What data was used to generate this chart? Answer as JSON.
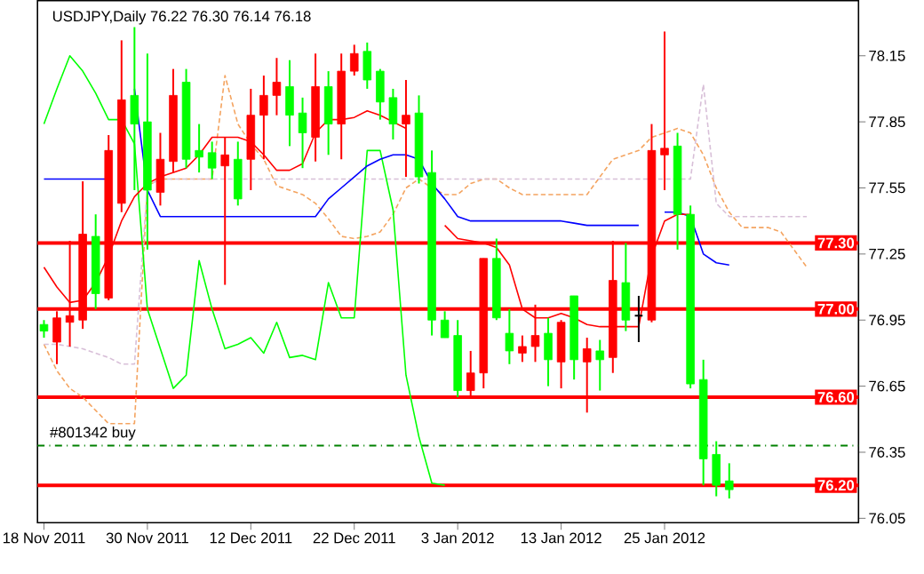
{
  "chart_data": {
    "type": "candlestick",
    "title": "USDJPY,Daily  76.22 76.30 76.14 76.18",
    "categories": [
      "18 Nov 2011",
      null,
      null,
      null,
      null,
      null,
      null,
      null,
      "30 Nov 2011",
      null,
      null,
      null,
      null,
      null,
      null,
      null,
      "12 Dec 2011",
      null,
      null,
      null,
      null,
      null,
      null,
      null,
      "22 Dec 2011",
      null,
      null,
      null,
      null,
      null,
      null,
      null,
      "3 Jan 2012",
      null,
      null,
      null,
      null,
      null,
      null,
      null,
      "13 Jan 2012",
      null,
      null,
      null,
      null,
      null,
      null,
      null,
      "25 Jan 2012",
      null,
      null,
      null,
      null,
      null,
      null,
      null,
      null,
      null,
      null,
      null
    ],
    "ohlc": [
      [
        76.93,
        76.95,
        76.87,
        76.9
      ],
      [
        76.85,
        76.99,
        76.75,
        76.96
      ],
      [
        76.94,
        77.31,
        76.83,
        76.97
      ],
      [
        76.95,
        77.58,
        76.91,
        77.34
      ],
      [
        77.33,
        77.43,
        77.0,
        77.07
      ],
      [
        77.05,
        77.79,
        77.04,
        77.72
      ],
      [
        77.48,
        78.22,
        77.44,
        77.95
      ],
      [
        77.97,
        78.28,
        77.54,
        77.84
      ],
      [
        77.85,
        78.16,
        77.27,
        77.54
      ],
      [
        77.53,
        77.8,
        77.47,
        77.68
      ],
      [
        77.67,
        78.09,
        77.62,
        77.97
      ],
      [
        78.03,
        78.09,
        77.64,
        77.68
      ],
      [
        77.72,
        77.84,
        77.62,
        77.69
      ],
      [
        77.71,
        77.76,
        77.59,
        77.64
      ],
      [
        77.65,
        77.78,
        77.11,
        77.7
      ],
      [
        77.68,
        77.76,
        77.47,
        77.5
      ],
      [
        77.68,
        78.0,
        77.54,
        77.88
      ],
      [
        77.88,
        78.06,
        77.68,
        77.97
      ],
      [
        77.97,
        78.14,
        77.88,
        78.03
      ],
      [
        78.01,
        78.13,
        77.74,
        77.88
      ],
      [
        77.89,
        77.96,
        77.64,
        77.8
      ],
      [
        77.78,
        78.16,
        77.67,
        78.01
      ],
      [
        78.01,
        78.08,
        77.7,
        77.84
      ],
      [
        77.84,
        78.16,
        77.68,
        78.08
      ],
      [
        78.08,
        78.2,
        78.06,
        78.16
      ],
      [
        78.17,
        78.21,
        78.0,
        78.04
      ],
      [
        78.08,
        78.09,
        77.86,
        77.94
      ],
      [
        77.96,
        78.0,
        77.77,
        77.84
      ],
      [
        77.84,
        78.04,
        77.6,
        77.88
      ],
      [
        77.89,
        77.97,
        77.57,
        77.6
      ],
      [
        77.62,
        77.72,
        76.88,
        76.95
      ],
      [
        76.95,
        76.99,
        76.87,
        76.87
      ],
      [
        76.88,
        76.95,
        76.6,
        76.63
      ],
      [
        76.63,
        76.81,
        76.6,
        76.71
      ],
      [
        76.71,
        77.23,
        76.64,
        77.23
      ],
      [
        77.23,
        77.32,
        76.95,
        76.96
      ],
      [
        76.89,
        77.0,
        76.75,
        76.81
      ],
      [
        76.8,
        76.88,
        76.76,
        76.83
      ],
      [
        76.83,
        77.02,
        76.76,
        76.88
      ],
      [
        76.89,
        76.96,
        76.65,
        76.77
      ],
      [
        76.76,
        76.95,
        76.64,
        76.94
      ],
      [
        77.06,
        77.06,
        76.68,
        76.77
      ],
      [
        76.76,
        76.87,
        76.53,
        76.82
      ],
      [
        76.81,
        76.86,
        76.63,
        76.77
      ],
      [
        76.78,
        77.31,
        76.71,
        77.13
      ],
      [
        77.12,
        77.3,
        76.9,
        76.95
      ],
      [
        76.97,
        77.06,
        76.85,
        76.97
      ],
      [
        76.95,
        77.84,
        76.94,
        77.72
      ],
      [
        77.7,
        78.26,
        77.54,
        77.73
      ],
      [
        77.74,
        77.8,
        77.27,
        77.43
      ],
      [
        77.43,
        77.47,
        76.64,
        76.66
      ],
      [
        76.68,
        76.77,
        76.2,
        76.32
      ],
      [
        76.34,
        76.4,
        76.15,
        76.2
      ],
      [
        76.22,
        76.3,
        76.14,
        76.18
      ],
      null,
      null,
      null,
      null,
      null,
      null
    ],
    "colors": [
      "#00ff00",
      "#ff0000",
      "#ff0000",
      "#ff0000",
      "#00ff00",
      "#ff0000",
      "#ff0000",
      "#00ff00",
      "#00ff00",
      "#ff0000",
      "#ff0000",
      "#00ff00",
      "#00ff00",
      "#00ff00",
      "#ff0000",
      "#00ff00",
      "#ff0000",
      "#ff0000",
      "#ff0000",
      "#00ff00",
      "#00ff00",
      "#ff0000",
      "#00ff00",
      "#ff0000",
      "#ff0000",
      "#00ff00",
      "#00ff00",
      "#00ff00",
      "#ff0000",
      "#00ff00",
      "#00ff00",
      "#00ff00",
      "#00ff00",
      "#ff0000",
      "#ff0000",
      "#00ff00",
      "#00ff00",
      "#ff0000",
      "#ff0000",
      "#00ff00",
      "#ff0000",
      "#00ff00",
      "#ff0000",
      "#00ff00",
      "#ff0000",
      "#00ff00",
      "#000000",
      "#ff0000",
      "#ff0000",
      "#00ff00",
      "#00ff00",
      "#00ff00",
      "#00ff00",
      "#00ff00",
      null,
      null,
      null,
      null,
      null,
      null
    ],
    "series": [
      {
        "type": "line",
        "color": "#f4a460",
        "line_style": "dashed",
        "values": [
          76.84,
          76.72,
          76.64,
          76.6,
          76.54,
          76.48,
          76.48,
          76.48,
          77.56,
          77.59,
          77.59,
          77.59,
          77.59,
          77.59,
          78.06,
          77.84,
          77.75,
          77.68,
          77.56,
          77.54,
          77.52,
          77.48,
          77.41,
          77.33,
          77.32,
          77.33,
          77.35,
          77.43,
          77.55,
          77.59,
          77.55,
          77.52,
          77.52,
          77.57,
          77.59,
          77.59,
          77.55,
          77.52,
          77.52,
          77.52,
          77.52,
          77.52,
          77.52,
          77.6,
          77.68,
          77.7,
          77.72,
          77.78,
          77.8,
          77.82,
          77.8,
          77.7,
          77.55,
          77.44,
          77.37,
          77.37,
          77.37,
          77.35,
          77.27,
          77.19
        ]
      },
      {
        "type": "line",
        "color": "#d8bfd8",
        "line_style": "dashed",
        "values": [
          76.84,
          76.84,
          76.83,
          76.82,
          76.8,
          76.78,
          76.75,
          76.75,
          77.56,
          77.59,
          77.59,
          77.59,
          77.59,
          77.59,
          77.59,
          77.59,
          77.59,
          77.59,
          77.59,
          77.59,
          77.59,
          77.59,
          77.59,
          77.59,
          77.59,
          77.59,
          77.59,
          77.59,
          77.59,
          77.59,
          77.59,
          77.59,
          77.59,
          77.59,
          77.59,
          77.59,
          77.59,
          77.59,
          77.59,
          77.59,
          77.59,
          77.59,
          77.59,
          77.59,
          77.59,
          77.59,
          77.59,
          77.59,
          77.59,
          77.59,
          77.59,
          78.02,
          77.48,
          77.42,
          77.42,
          77.42,
          77.42,
          77.42,
          77.42,
          77.42
        ]
      },
      {
        "type": "line",
        "color": "#00ff00",
        "values": [
          77.84,
          78.0,
          78.15,
          78.08,
          77.98,
          77.86,
          77.86,
          77.75,
          77.0,
          76.82,
          76.64,
          76.7,
          77.22,
          77.0,
          76.82,
          76.84,
          76.87,
          76.8,
          76.94,
          76.78,
          76.79,
          76.77,
          77.12,
          76.96,
          76.96,
          77.72,
          77.72,
          77.45,
          76.7,
          76.42,
          76.21,
          76.2,
          null,
          null,
          null,
          null,
          null,
          null,
          null,
          null,
          null,
          null,
          null,
          null,
          null,
          null,
          null,
          null,
          null,
          null,
          null,
          null,
          null,
          null,
          null,
          null,
          null,
          null,
          null,
          null
        ]
      },
      {
        "type": "line",
        "color": "#0000ff",
        "values": [
          77.59,
          77.59,
          77.59,
          77.59,
          77.59,
          77.59,
          null,
          78.0,
          77.54,
          77.42,
          77.42,
          77.42,
          77.42,
          77.42,
          77.42,
          77.42,
          77.42,
          77.42,
          77.42,
          77.42,
          77.42,
          77.42,
          77.5,
          77.55,
          77.6,
          77.65,
          77.68,
          77.7,
          77.7,
          77.68,
          77.57,
          77.5,
          77.42,
          77.4,
          77.4,
          77.4,
          77.4,
          77.4,
          77.4,
          77.4,
          77.4,
          77.39,
          77.38,
          77.38,
          77.38,
          77.38,
          77.38,
          null,
          77.44,
          77.44,
          77.42,
          77.25,
          77.21,
          77.2,
          null,
          null,
          null,
          null,
          null,
          null
        ]
      },
      {
        "type": "line",
        "color": "#ff0000",
        "values": [
          77.19,
          77.1,
          77.03,
          77.04,
          77.12,
          77.24,
          77.4,
          77.51,
          77.57,
          77.6,
          77.62,
          77.64,
          77.7,
          77.78,
          77.78,
          77.78,
          77.76,
          77.7,
          77.63,
          77.63,
          77.66,
          77.8,
          77.86,
          77.86,
          77.87,
          77.9,
          77.88,
          77.85,
          77.82,
          null,
          null,
          77.38,
          77.32,
          77.31,
          77.3,
          77.28,
          77.2,
          77.0,
          76.96,
          76.96,
          76.98,
          76.96,
          76.93,
          76.92,
          76.92,
          76.92,
          76.92,
          77.24,
          77.4,
          77.43,
          77.43,
          null,
          null,
          null,
          null,
          null,
          null,
          null,
          null,
          null
        ]
      }
    ],
    "ylim": [
      76.03,
      78.4
    ],
    "yticks": [
      76.05,
      76.35,
      76.65,
      76.95,
      77.25,
      77.55,
      77.85,
      78.15
    ],
    "ref_lines": [
      {
        "axis": "y",
        "value": 77.3,
        "label": "77.30",
        "color": "#ff0000"
      },
      {
        "axis": "y",
        "value": 77.0,
        "label": "77.00",
        "color": "#ff0000"
      },
      {
        "axis": "y",
        "value": 76.6,
        "label": "76.60",
        "color": "#ff0000"
      },
      {
        "axis": "y",
        "value": 76.2,
        "label": "76.20",
        "color": "#ff0000"
      },
      {
        "axis": "y",
        "value": 76.38,
        "label": "#801342 buy",
        "color": "#008000",
        "line_style": "dashed"
      }
    ]
  }
}
